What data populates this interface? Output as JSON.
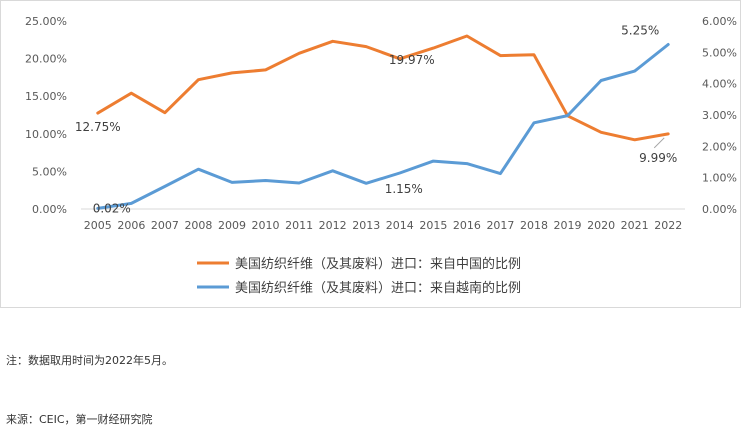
{
  "chart_data": {
    "type": "line",
    "title": "",
    "xlabel": "",
    "ylabel": "",
    "x": [
      "2005",
      "2006",
      "2007",
      "2008",
      "2009",
      "2010",
      "2011",
      "2012",
      "2013",
      "2014",
      "2015",
      "2016",
      "2017",
      "2018",
      "2019",
      "2020",
      "2021",
      "2022"
    ],
    "y_left": {
      "range": [
        0,
        25
      ],
      "ticks": [
        0,
        5,
        10,
        15,
        20,
        25
      ],
      "tick_labels": [
        "0.00%",
        "5.00%",
        "10.00%",
        "15.00%",
        "20.00%",
        "25.00%"
      ]
    },
    "y_right": {
      "range": [
        0,
        6
      ],
      "ticks": [
        0,
        1,
        2,
        3,
        4,
        5,
        6
      ],
      "tick_labels": [
        "0.00%",
        "1.00%",
        "2.00%",
        "3.00%",
        "4.00%",
        "5.00%",
        "6.00%"
      ]
    },
    "grid": false,
    "legend_position": "bottom",
    "series": [
      {
        "name": "美国纺织纤维（及其废料）进口：来自中国的比例",
        "axis": "left",
        "color": "#ed7d31",
        "values": [
          12.75,
          15.4,
          12.8,
          17.2,
          18.1,
          18.5,
          20.7,
          22.3,
          21.6,
          19.97,
          21.4,
          23.0,
          20.4,
          20.5,
          12.4,
          10.2,
          9.2,
          9.99
        ]
      },
      {
        "name": "美国纺织纤维（及其废料）进口：来自越南的比例",
        "axis": "right",
        "color": "#5b9bd5",
        "values": [
          0.02,
          0.18,
          0.72,
          1.27,
          0.85,
          0.91,
          0.83,
          1.22,
          0.82,
          1.15,
          1.53,
          1.45,
          1.13,
          2.75,
          2.98,
          4.1,
          4.4,
          5.25
        ]
      }
    ],
    "annotations": [
      {
        "series": 0,
        "index": 0,
        "text": "12.75%"
      },
      {
        "series": 0,
        "index": 9,
        "text": "19.97%"
      },
      {
        "series": 0,
        "index": 17,
        "text": "9.99%"
      },
      {
        "series": 1,
        "index": 0,
        "text": "0.02%"
      },
      {
        "series": 1,
        "index": 9,
        "text": "1.15%"
      },
      {
        "series": 1,
        "index": 17,
        "text": "5.25%"
      }
    ]
  },
  "notes": {
    "note": "注：数据取用时间为2022年5月。",
    "source": "来源：CEIC，第一财经研究院"
  }
}
